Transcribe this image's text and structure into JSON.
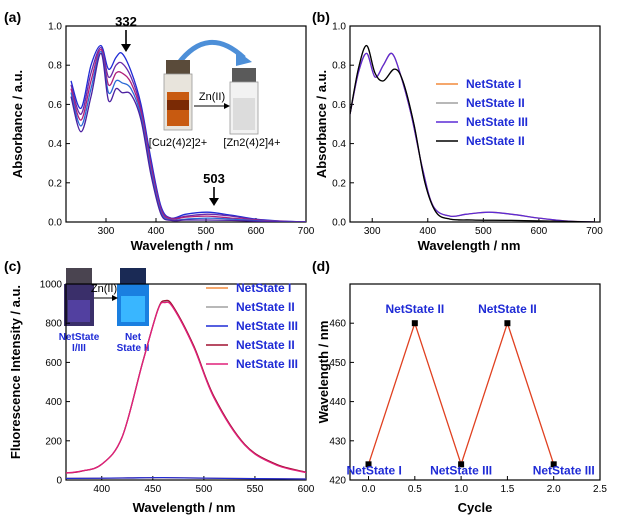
{
  "colors": {
    "blue_label": "#1f2bd6",
    "orange": "#f28a3c",
    "gray": "#a0a0a0",
    "purple": "#5b2bd6",
    "black": "#000000",
    "crimson": "#a01030",
    "pink": "#e0207a",
    "red_line": "#e04020"
  },
  "icons": [
    "cuvette-orange-image",
    "cuvette-clear-image",
    "cuvette-dark-image",
    "cuvette-blue-glow-image",
    "curved-arrow-icon"
  ],
  "chart_data": [
    {
      "id": "a",
      "type": "line",
      "panel_label": "(a)",
      "xlabel": "Wavelength / nm",
      "ylabel": "Absorbance / a.u.",
      "xlim": [
        220,
        700
      ],
      "ylim": [
        0,
        1.0
      ],
      "xticks": [
        300,
        400,
        500,
        600,
        700
      ],
      "yticks": [
        0.0,
        0.2,
        0.4,
        0.6,
        0.8,
        1.0
      ],
      "annotations": [
        {
          "text": "332",
          "x": 332,
          "y": 0.86
        },
        {
          "text": "503",
          "x": 503,
          "y": 0.05
        }
      ],
      "inset": {
        "reaction_label": "Zn(II)",
        "reactant": "[Cu2(4)2]2+",
        "product": "[Zn2(4)2]4+"
      },
      "series": [
        {
          "values": [
            [
              230,
              0.72
            ],
            [
              250,
              0.58
            ],
            [
              270,
              0.8
            ],
            [
              290,
              0.9
            ],
            [
              305,
              0.78
            ],
            [
              320,
              0.84
            ],
            [
              332,
              0.86
            ],
            [
              350,
              0.77
            ],
            [
              370,
              0.6
            ],
            [
              390,
              0.32
            ],
            [
              410,
              0.08
            ],
            [
              430,
              0.02
            ],
            [
              460,
              0.04
            ],
            [
              503,
              0.05
            ],
            [
              550,
              0.035
            ],
            [
              600,
              0.015
            ],
            [
              650,
              0.005
            ],
            [
              700,
              0
            ]
          ]
        },
        {
          "values": [
            [
              230,
              0.7
            ],
            [
              250,
              0.55
            ],
            [
              270,
              0.76
            ],
            [
              290,
              0.89
            ],
            [
              305,
              0.74
            ],
            [
              320,
              0.8
            ],
            [
              332,
              0.81
            ],
            [
              350,
              0.74
            ],
            [
              370,
              0.58
            ],
            [
              390,
              0.3
            ],
            [
              410,
              0.07
            ],
            [
              430,
              0.02
            ],
            [
              460,
              0.03
            ],
            [
              503,
              0.04
            ],
            [
              550,
              0.03
            ],
            [
              600,
              0.012
            ],
            [
              650,
              0.004
            ],
            [
              700,
              0
            ]
          ]
        },
        {
          "values": [
            [
              230,
              0.68
            ],
            [
              250,
              0.52
            ],
            [
              270,
              0.72
            ],
            [
              290,
              0.88
            ],
            [
              305,
              0.7
            ],
            [
              320,
              0.76
            ],
            [
              332,
              0.76
            ],
            [
              350,
              0.71
            ],
            [
              370,
              0.56
            ],
            [
              390,
              0.28
            ],
            [
              410,
              0.06
            ],
            [
              430,
              0.015
            ],
            [
              460,
              0.025
            ],
            [
              503,
              0.03
            ],
            [
              550,
              0.02
            ],
            [
              600,
              0.01
            ],
            [
              650,
              0.003
            ],
            [
              700,
              0
            ]
          ]
        },
        {
          "values": [
            [
              230,
              0.66
            ],
            [
              250,
              0.49
            ],
            [
              270,
              0.68
            ],
            [
              290,
              0.87
            ],
            [
              305,
              0.66
            ],
            [
              320,
              0.72
            ],
            [
              332,
              0.71
            ],
            [
              350,
              0.68
            ],
            [
              370,
              0.54
            ],
            [
              390,
              0.26
            ],
            [
              410,
              0.05
            ],
            [
              430,
              0.01
            ],
            [
              460,
              0.015
            ],
            [
              503,
              0.02
            ],
            [
              550,
              0.015
            ],
            [
              600,
              0.007
            ],
            [
              650,
              0.002
            ],
            [
              700,
              0
            ]
          ]
        },
        {
          "values": [
            [
              230,
              0.64
            ],
            [
              250,
              0.46
            ],
            [
              270,
              0.64
            ],
            [
              290,
              0.86
            ],
            [
              305,
              0.62
            ],
            [
              320,
              0.68
            ],
            [
              332,
              0.66
            ],
            [
              350,
              0.65
            ],
            [
              370,
              0.52
            ],
            [
              390,
              0.24
            ],
            [
              410,
              0.04
            ],
            [
              430,
              0.008
            ],
            [
              460,
              0.01
            ],
            [
              503,
              0.01
            ],
            [
              550,
              0.008
            ],
            [
              600,
              0.004
            ],
            [
              650,
              0.001
            ],
            [
              700,
              0
            ]
          ]
        }
      ]
    },
    {
      "id": "b",
      "type": "line",
      "panel_label": "(b)",
      "xlabel": "Wavelength / nm",
      "ylabel": "Absorbance / a.u.",
      "xlim": [
        260,
        710
      ],
      "ylim": [
        0,
        1.0
      ],
      "xticks": [
        300,
        400,
        500,
        600,
        700
      ],
      "yticks": [
        0.0,
        0.2,
        0.4,
        0.6,
        0.8,
        1.0
      ],
      "series": [
        {
          "name": "NetState I",
          "color": "#f28a3c",
          "values": [
            [
              260,
              0.55
            ],
            [
              275,
              0.76
            ],
            [
              290,
              0.86
            ],
            [
              305,
              0.74
            ],
            [
              320,
              0.8
            ],
            [
              335,
              0.86
            ],
            [
              350,
              0.76
            ],
            [
              370,
              0.55
            ],
            [
              390,
              0.28
            ],
            [
              410,
              0.08
            ],
            [
              440,
              0.03
            ],
            [
              470,
              0.04
            ],
            [
              510,
              0.05
            ],
            [
              550,
              0.04
            ],
            [
              600,
              0.02
            ],
            [
              650,
              0.005
            ],
            [
              700,
              0
            ]
          ]
        },
        {
          "name": "NetState II",
          "color": "#a0a0a0",
          "values": [
            [
              260,
              0.55
            ],
            [
              275,
              0.78
            ],
            [
              290,
              0.9
            ],
            [
              305,
              0.76
            ],
            [
              320,
              0.72
            ],
            [
              340,
              0.78
            ],
            [
              355,
              0.72
            ],
            [
              375,
              0.5
            ],
            [
              395,
              0.2
            ],
            [
              415,
              0.05
            ],
            [
              440,
              0.015
            ],
            [
              480,
              0.01
            ],
            [
              550,
              0.008
            ],
            [
              650,
              0.003
            ],
            [
              700,
              0
            ]
          ]
        },
        {
          "name": "NetState III",
          "color": "#5b2bd6",
          "values": [
            [
              260,
              0.55
            ],
            [
              275,
              0.76
            ],
            [
              290,
              0.86
            ],
            [
              305,
              0.74
            ],
            [
              320,
              0.8
            ],
            [
              335,
              0.86
            ],
            [
              350,
              0.76
            ],
            [
              370,
              0.55
            ],
            [
              390,
              0.28
            ],
            [
              410,
              0.08
            ],
            [
              440,
              0.03
            ],
            [
              470,
              0.04
            ],
            [
              510,
              0.05
            ],
            [
              550,
              0.04
            ],
            [
              600,
              0.02
            ],
            [
              650,
              0.005
            ],
            [
              700,
              0
            ]
          ]
        },
        {
          "name": "NetState II",
          "color": "#000000",
          "values": [
            [
              260,
              0.55
            ],
            [
              275,
              0.78
            ],
            [
              290,
              0.9
            ],
            [
              305,
              0.76
            ],
            [
              320,
              0.72
            ],
            [
              340,
              0.78
            ],
            [
              355,
              0.72
            ],
            [
              375,
              0.5
            ],
            [
              395,
              0.2
            ],
            [
              415,
              0.05
            ],
            [
              440,
              0.015
            ],
            [
              480,
              0.01
            ],
            [
              550,
              0.008
            ],
            [
              650,
              0.003
            ],
            [
              700,
              0
            ]
          ]
        }
      ]
    },
    {
      "id": "c",
      "type": "line",
      "panel_label": "(c)",
      "xlabel": "Wavelength / nm",
      "ylabel": "Fluorescence Intensity / a.u.",
      "xlim": [
        365,
        600
      ],
      "ylim": [
        0,
        1000
      ],
      "xticks": [
        400,
        450,
        500,
        550,
        600
      ],
      "yticks": [
        0,
        200,
        400,
        600,
        800,
        1000
      ],
      "inset": {
        "reaction_label": "Zn(II)",
        "left_vial": "NetState I/III",
        "right_vial": "Net State II"
      },
      "series": [
        {
          "name": "NetState I",
          "color": "#f28a3c",
          "values": [
            [
              365,
              8
            ],
            [
              420,
              10
            ],
            [
              460,
              12
            ],
            [
              520,
              8
            ],
            [
              600,
              5
            ]
          ]
        },
        {
          "name": "NetState II",
          "color": "#a0a0a0",
          "values": [
            [
              365,
              35
            ],
            [
              380,
              45
            ],
            [
              400,
              80
            ],
            [
              420,
              220
            ],
            [
              440,
              600
            ],
            [
              455,
              870
            ],
            [
              462,
              910
            ],
            [
              470,
              880
            ],
            [
              490,
              680
            ],
            [
              510,
              420
            ],
            [
              540,
              180
            ],
            [
              570,
              80
            ],
            [
              600,
              40
            ]
          ]
        },
        {
          "name": "NetState III",
          "color": "#1f2bd6",
          "values": [
            [
              365,
              8
            ],
            [
              420,
              10
            ],
            [
              460,
              12
            ],
            [
              520,
              8
            ],
            [
              600,
              5
            ]
          ]
        },
        {
          "name": "NetState II",
          "color": "#a01030",
          "values": [
            [
              365,
              35
            ],
            [
              380,
              45
            ],
            [
              400,
              80
            ],
            [
              420,
              220
            ],
            [
              440,
              600
            ],
            [
              455,
              870
            ],
            [
              462,
              915
            ],
            [
              470,
              885
            ],
            [
              490,
              685
            ],
            [
              510,
              425
            ],
            [
              540,
              182
            ],
            [
              570,
              82
            ],
            [
              600,
              40
            ]
          ]
        },
        {
          "name": "NetState III",
          "color": "#e0207a",
          "values": [
            [
              365,
              36
            ],
            [
              380,
              46
            ],
            [
              400,
              80
            ],
            [
              420,
              220
            ],
            [
              440,
              598
            ],
            [
              455,
              868
            ],
            [
              462,
              905
            ],
            [
              470,
              878
            ],
            [
              490,
              678
            ],
            [
              510,
              418
            ],
            [
              540,
              178
            ],
            [
              570,
              78
            ],
            [
              600,
              38
            ]
          ]
        }
      ]
    },
    {
      "id": "d",
      "type": "line",
      "panel_label": "(d)",
      "xlabel": "Cycle",
      "ylabel": "Wavelength / nm",
      "xlim": [
        -0.2,
        2.5
      ],
      "ylim": [
        420,
        470
      ],
      "xticks": [
        0.0,
        0.5,
        1.0,
        1.5,
        2.0,
        2.5
      ],
      "yticks": [
        420,
        430,
        440,
        450,
        460
      ],
      "series": [
        {
          "color": "#e04020",
          "values": [
            [
              0.0,
              424
            ],
            [
              0.5,
              460
            ],
            [
              1.0,
              424
            ],
            [
              1.5,
              460
            ],
            [
              2.0,
              424
            ]
          ]
        }
      ],
      "point_labels": [
        "NetState I",
        "NetState II",
        "NetState III",
        "NetState II",
        "NetState III"
      ]
    }
  ]
}
